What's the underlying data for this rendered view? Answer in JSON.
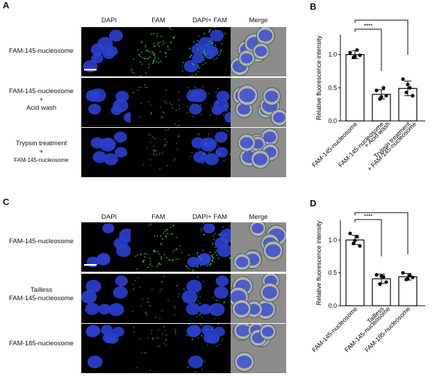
{
  "panels": {
    "A": {
      "letter": "A",
      "columns": [
        "DAPI",
        "FAM",
        "DAPI+ FAM",
        "Merge"
      ],
      "rows": [
        {
          "lines": [
            "FAM-145-nucleosome"
          ],
          "fam": 0.9
        },
        {
          "lines": [
            "FAM-145-nucleosome",
            "+",
            "Acid wash"
          ],
          "fam": 0.3
        },
        {
          "lines": [
            "Trypsin treatment",
            "+",
            "FAM-145-nucleosome"
          ],
          "fam": 0.3
        }
      ]
    },
    "C": {
      "letter": "C",
      "columns": [
        "DAPI",
        "FAM",
        "DAPI+ FAM",
        "Merge"
      ],
      "rows": [
        {
          "lines": [
            "FAM-145-nucleosome"
          ],
          "fam": 0.9
        },
        {
          "lines": [
            "Tailless",
            "FAM-145-nucleosome"
          ],
          "fam": 0.3
        },
        {
          "lines": [
            "FAM-185-nucleosome"
          ],
          "fam": 0.3
        }
      ]
    },
    "B": {
      "letter": "B"
    },
    "D": {
      "letter": "D"
    }
  },
  "colors": {
    "dapi": "#2a3fcf",
    "fam": "#34c534",
    "merge_bg": "#8c8c8c"
  },
  "chart_data": [
    {
      "type": "bar",
      "ylabel": "Relative fluorescence intensity",
      "ylim": [
        0,
        1.3
      ],
      "yticks": [
        "0.0",
        "0.5",
        "1.0"
      ],
      "categories": [
        [
          "FAM-145-nucleosome"
        ],
        [
          "FAM-145-nucleosome",
          "+ Acid wash"
        ],
        [
          "Trypsin treatment",
          "+ FAM-145-nucleosome"
        ]
      ],
      "values": [
        1.0,
        0.4,
        0.49
      ],
      "errors": [
        0.06,
        0.07,
        0.11
      ],
      "points": [
        [
          1.03,
          0.96,
          1.07,
          0.99,
          0.97
        ],
        [
          0.46,
          0.33,
          0.5,
          0.38,
          0.36
        ],
        [
          0.63,
          0.43,
          0.5,
          0.38,
          0.55
        ]
      ],
      "significance": [
        {
          "from": 0,
          "to": 1,
          "label": "****"
        },
        {
          "from": 0,
          "to": 2,
          "label": "****"
        }
      ]
    },
    {
      "type": "bar",
      "ylabel": "Relative fluorescence intensity",
      "ylim": [
        0,
        1.3
      ],
      "yticks": [
        "0.0",
        "0.5",
        "1.0"
      ],
      "categories": [
        [
          "FAM-145-nucleosome"
        ],
        [
          "Tailless",
          "FAM-145-nucleosome"
        ],
        [
          "FAM-185-nucleosome"
        ]
      ],
      "values": [
        1.0,
        0.41,
        0.44
      ],
      "errors": [
        0.07,
        0.07,
        0.05
      ],
      "points": [
        [
          1.1,
          0.95,
          1.05,
          0.91,
          0.99
        ],
        [
          0.47,
          0.33,
          0.44,
          0.36,
          0.45
        ],
        [
          0.5,
          0.4,
          0.46,
          0.43,
          0.41
        ]
      ],
      "significance": [
        {
          "from": 0,
          "to": 1,
          "label": "****"
        },
        {
          "from": 0,
          "to": 2,
          "label": "****"
        }
      ]
    }
  ]
}
